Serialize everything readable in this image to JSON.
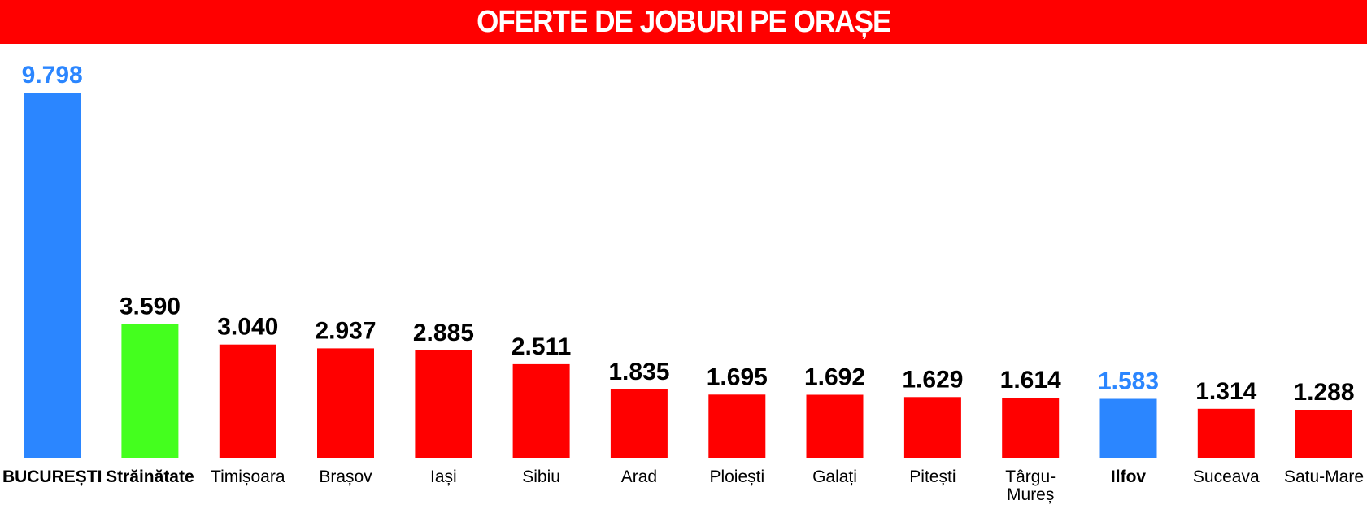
{
  "chart_data": {
    "type": "bar",
    "title": "OFERTE DE JOBURI PE ORAȘE",
    "xlabel": "",
    "ylabel": "",
    "ylim": [
      0,
      9798
    ],
    "grid": false,
    "legend": "none",
    "categories": [
      "BUCUREȘTI",
      "Străinătate",
      "Timișoara",
      "Brașov",
      "Iași",
      "Sibiu",
      "Arad",
      "Ploiești",
      "Galați",
      "Pitești",
      "Târgu-Mureș",
      "Ilfov",
      "Suceava",
      "Satu-Mare"
    ],
    "values": [
      9798,
      3590,
      3040,
      2937,
      2885,
      2511,
      1835,
      1695,
      1692,
      1629,
      1614,
      1583,
      1314,
      1288
    ],
    "value_labels": [
      "9.798",
      "3.590",
      "3.040",
      "2.937",
      "2.885",
      "2.511",
      "1.835",
      "1.695",
      "1.692",
      "1.629",
      "1.614",
      "1.583",
      "1.314",
      "1.288"
    ],
    "category_label_lines": [
      [
        "BUCUREȘTI"
      ],
      [
        "Străinătate"
      ],
      [
        "Timișoara"
      ],
      [
        "Brașov"
      ],
      [
        "Iași"
      ],
      [
        "Sibiu"
      ],
      [
        "Arad"
      ],
      [
        "Ploiești"
      ],
      [
        "Galați"
      ],
      [
        "Pitești"
      ],
      [
        "Târgu-",
        "Mureș"
      ],
      [
        "Ilfov"
      ],
      [
        "Suceava"
      ],
      [
        "Satu-Mare"
      ]
    ],
    "bold_categories": [
      "BUCUREȘTI",
      "Străinătate",
      "Ilfov"
    ],
    "bar_colors": [
      "#2b86ff",
      "#44ff1e",
      "#ff0000",
      "#ff0000",
      "#ff0000",
      "#ff0000",
      "#ff0000",
      "#ff0000",
      "#ff0000",
      "#ff0000",
      "#ff0000",
      "#2b86ff",
      "#ff0000",
      "#ff0000"
    ],
    "value_label_colors": [
      "#2b86ff",
      "#000000",
      "#000000",
      "#000000",
      "#000000",
      "#000000",
      "#000000",
      "#000000",
      "#000000",
      "#000000",
      "#000000",
      "#2b86ff",
      "#000000",
      "#000000"
    ],
    "colors": {
      "title_bar": "#ff0000",
      "title_text": "#ffffff"
    }
  }
}
